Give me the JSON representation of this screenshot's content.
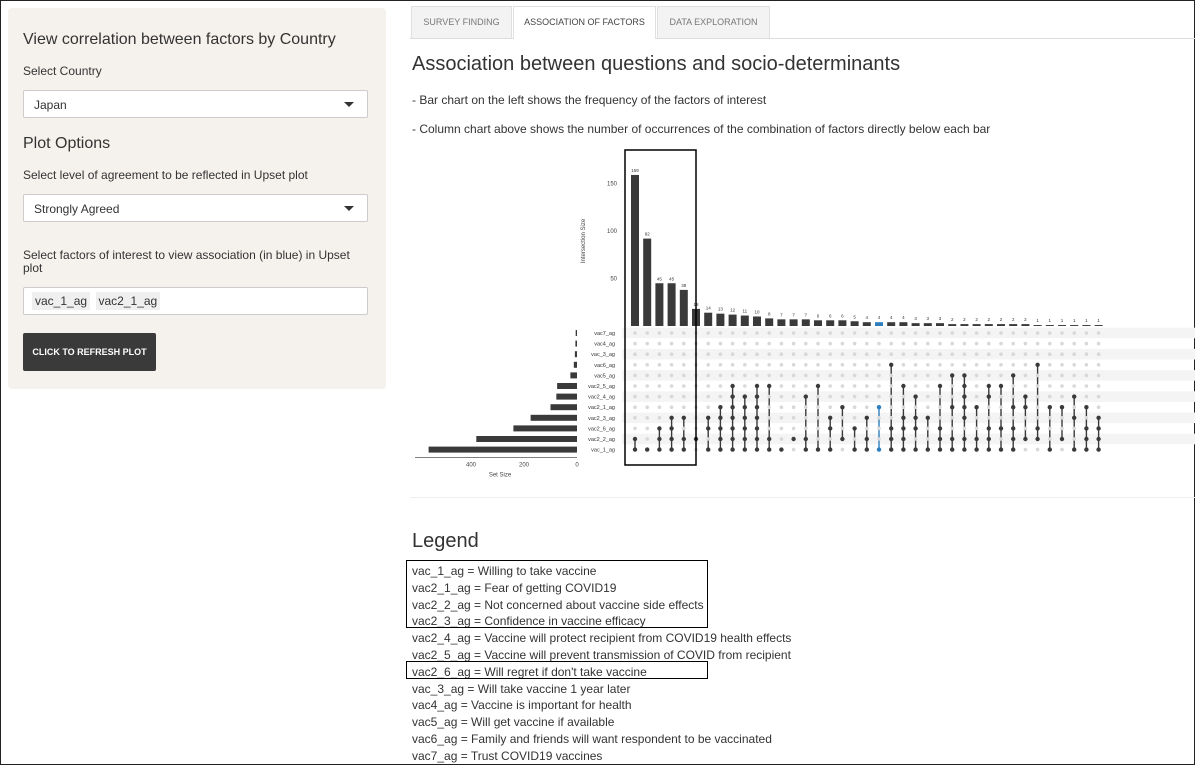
{
  "sidebar": {
    "title": "View correlation between factors by Country",
    "country_label": "Select Country",
    "country_value": "Japan",
    "plot_options_title": "Plot Options",
    "agreement_label": "Select level of agreement to be reflected in Upset plot",
    "agreement_value": "Strongly Agreed",
    "factors_label": "Select factors of interest to view association (in blue) in Upset plot",
    "factors_tags": [
      "vac_1_ag",
      "vac2_1_ag"
    ],
    "refresh_button": "CLICK TO REFRESH PLOT"
  },
  "tabs": [
    {
      "label": "SURVEY FINDING",
      "active": false
    },
    {
      "label": "ASSOCIATION OF FACTORS",
      "active": true
    },
    {
      "label": "DATA EXPLORATION",
      "active": false
    }
  ],
  "main": {
    "heading": "Association between questions and socio-determinants",
    "desc1": "- Bar chart on the left shows the frequency of the factors of interest",
    "desc2": "- Column chart above shows the number of occurrences of the combination of factors directly below each bar"
  },
  "colors": {
    "bar": "#3a3a3a",
    "highlight": "#2f7fbf",
    "dot_off": "#d8d8d8"
  },
  "chart_data": {
    "type": "bar",
    "ylabel": "Intersection Size",
    "xlabel": "Set Size",
    "intersection_yticks": [
      50,
      100,
      150
    ],
    "set_size_xticks": [
      400,
      200,
      0
    ],
    "sets": [
      "vac7_ag",
      "vac4_ag",
      "vac_3_ag",
      "vac6_ag",
      "vac5_ag",
      "vac2_5_ag",
      "vac2_4_ag",
      "vac2_1_ag",
      "vac2_3_ag",
      "vac2_6_ag",
      "vac2_2_ag",
      "vac_1_ag"
    ],
    "set_sizes": [
      5,
      6,
      8,
      12,
      25,
      75,
      78,
      100,
      175,
      240,
      380,
      560
    ],
    "intersections": [
      {
        "size": 159,
        "sets": [
          10,
          11
        ]
      },
      {
        "size": 92,
        "sets": [
          11
        ]
      },
      {
        "size": 45,
        "sets": [
          9,
          10,
          11
        ]
      },
      {
        "size": 45,
        "sets": [
          8,
          9,
          10,
          11
        ]
      },
      {
        "size": 38,
        "sets": [
          8,
          10,
          11
        ]
      },
      {
        "size": 18,
        "sets": [
          10
        ]
      },
      {
        "size": 14,
        "sets": [
          8,
          9,
          11
        ]
      },
      {
        "size": 13,
        "sets": [
          7,
          8,
          9,
          10,
          11
        ]
      },
      {
        "size": 12,
        "sets": [
          5,
          6,
          7,
          8,
          9,
          10,
          11
        ]
      },
      {
        "size": 11,
        "sets": [
          6,
          7,
          8,
          9,
          10,
          11
        ]
      },
      {
        "size": 10,
        "sets": [
          5,
          6,
          7,
          8,
          9,
          10,
          11
        ]
      },
      {
        "size": 8,
        "sets": [
          5,
          10,
          11
        ]
      },
      {
        "size": 7,
        "sets": [
          11
        ]
      },
      {
        "size": 7,
        "sets": [
          10
        ]
      },
      {
        "size": 7,
        "sets": [
          6,
          10,
          11
        ]
      },
      {
        "size": 6,
        "sets": [
          5,
          11
        ]
      },
      {
        "size": 6,
        "sets": [
          8,
          9,
          11
        ]
      },
      {
        "size": 6,
        "sets": [
          7,
          10
        ]
      },
      {
        "size": 5,
        "sets": [
          9,
          11
        ]
      },
      {
        "size": 4,
        "sets": [
          8,
          10,
          11
        ],
        "highlight": false
      },
      {
        "size": 4,
        "sets": [
          7,
          11
        ],
        "highlight": true
      },
      {
        "size": 4,
        "sets": [
          3,
          9,
          10,
          11
        ]
      },
      {
        "size": 4,
        "sets": [
          5,
          8,
          9,
          10,
          11
        ]
      },
      {
        "size": 3,
        "sets": [
          6,
          8,
          9,
          11
        ]
      },
      {
        "size": 3,
        "sets": [
          8,
          11
        ]
      },
      {
        "size": 3,
        "sets": [
          5,
          9,
          10,
          11
        ]
      },
      {
        "size": 2,
        "sets": [
          4,
          7,
          10,
          11
        ]
      },
      {
        "size": 2,
        "sets": [
          4,
          5,
          6,
          7,
          8,
          10,
          11
        ]
      },
      {
        "size": 2,
        "sets": [
          7,
          10,
          11
        ]
      },
      {
        "size": 2,
        "sets": [
          5,
          6,
          9,
          10,
          11
        ]
      },
      {
        "size": 2,
        "sets": [
          5,
          9,
          11
        ]
      },
      {
        "size": 2,
        "sets": [
          4,
          7,
          9,
          10,
          11
        ]
      },
      {
        "size": 2,
        "sets": [
          6,
          7,
          10
        ]
      },
      {
        "size": 1,
        "sets": [
          3,
          9,
          10
        ]
      },
      {
        "size": 1,
        "sets": [
          7,
          11
        ]
      },
      {
        "size": 1,
        "sets": [
          7,
          10
        ]
      },
      {
        "size": 1,
        "sets": [
          6,
          8,
          11
        ]
      },
      {
        "size": 1,
        "sets": [
          7,
          9,
          10,
          11
        ]
      },
      {
        "size": 1,
        "sets": [
          8,
          9,
          10,
          11
        ]
      }
    ]
  },
  "legend": {
    "title": "Legend",
    "items": [
      "vac_1_ag = Willing to take vaccine",
      "vac2_1_ag = Fear of getting COVID19",
      "vac2_2_ag = Not concerned about vaccine side effects",
      "vac2_3_ag = Confidence in vaccine efficacy",
      "vac2_4_ag = Vaccine will protect recipient from COVID19 health effects",
      "vac2_5_ag = Vaccine will prevent transmission of COVID from recipient",
      "vac2_6_ag = Will regret if don't take vaccine",
      "vac_3_ag = Will take vaccine 1 year later",
      "vac4_ag = Vaccine is important for health",
      "vac5_ag = Will get vaccine if available",
      "vac6_ag = Family and friends will want respondent to be vaccinated",
      "vac7_ag = Trust COVID19 vaccines"
    ]
  }
}
